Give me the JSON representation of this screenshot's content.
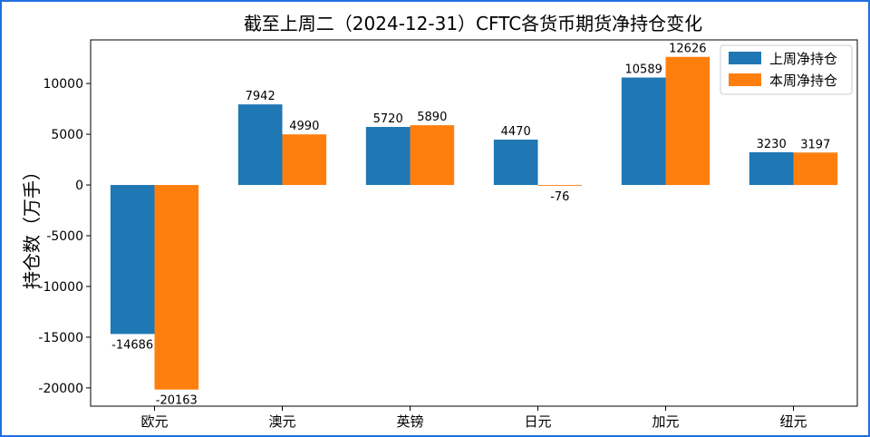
{
  "colors": {
    "series_1": "#1f77b4",
    "series_2": "#ff7f0e",
    "frame_border": "#1f6fe0",
    "axes": "#000000"
  },
  "chart_data": {
    "type": "bar",
    "title": "截至上周二（2024-12-31）CFTC各货币期货净持仓变化",
    "xlabel": "",
    "ylabel": "持仓数（万手）",
    "categories": [
      "欧元",
      "澳元",
      "英镑",
      "日元",
      "加元",
      "纽元"
    ],
    "series": [
      {
        "name": "上周净持仓",
        "values": [
          -14686,
          7942,
          5720,
          4470,
          10589,
          3230
        ]
      },
      {
        "name": "本周净持仓",
        "values": [
          -20163,
          4990,
          5890,
          -76,
          12626,
          3197
        ]
      }
    ],
    "ylim": [
      -21800,
      14300
    ],
    "yticks": [
      -20000,
      -15000,
      -10000,
      -5000,
      0,
      5000,
      10000
    ],
    "legend_position": "top-right",
    "grid": false,
    "data_labels": true
  }
}
